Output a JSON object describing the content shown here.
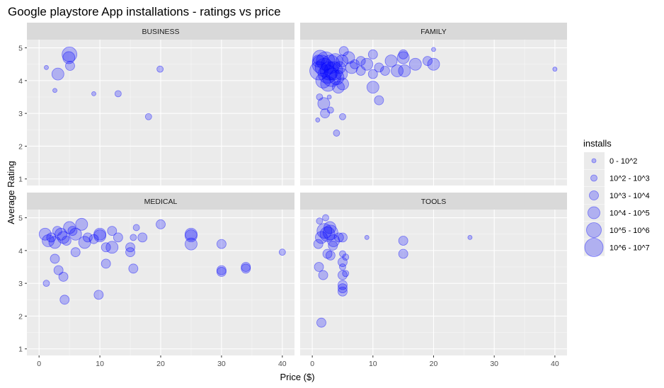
{
  "chart_data": {
    "type": "scatter",
    "title": "Google playstore App installations - ratings vs price",
    "xlabel": "Price ($)",
    "ylabel": "Average Rating",
    "xlim": [
      -2,
      42
    ],
    "ylim": [
      0.8,
      5.25
    ],
    "x_ticks": [
      0,
      10,
      20,
      30,
      40
    ],
    "y_ticks": [
      1,
      2,
      3,
      4,
      5
    ],
    "grid": true,
    "legend": {
      "title": "installs",
      "position": "right",
      "labels": [
        "0 - 10^2",
        "10^2 - 10^3",
        "10^3 - 10^4",
        "10^4 - 10^5",
        "10^5 - 10^6",
        "10^6 - 10^7"
      ]
    },
    "point_color": "#0000ff",
    "panel_bg": "#ebebeb",
    "strip_bg": "#d9d9d9",
    "panels": [
      {
        "name": "BUSINESS",
        "points": [
          [
            1.2,
            4.4,
            1
          ],
          [
            2.6,
            3.7,
            1
          ],
          [
            9,
            3.6,
            1
          ],
          [
            5,
            4.8,
            5
          ],
          [
            4.9,
            4.7,
            4
          ],
          [
            5.1,
            4.45,
            3
          ],
          [
            3.1,
            4.2,
            4
          ],
          [
            13,
            3.6,
            2
          ],
          [
            18,
            2.9,
            2
          ],
          [
            19.9,
            4.35,
            2
          ]
        ]
      },
      {
        "name": "FAMILY",
        "points": [
          [
            1.1,
            4.3,
            6
          ],
          [
            1.5,
            4.5,
            6
          ],
          [
            2,
            4.4,
            6
          ],
          [
            2.5,
            4.2,
            6
          ],
          [
            3,
            4.5,
            6
          ],
          [
            3.5,
            4.3,
            6
          ],
          [
            4,
            4.1,
            5
          ],
          [
            1.3,
            4.7,
            5
          ],
          [
            2.2,
            4.6,
            6
          ],
          [
            2.8,
            4.3,
            6
          ],
          [
            3.2,
            4.1,
            6
          ],
          [
            3.8,
            4.6,
            5
          ],
          [
            1.8,
            4.0,
            5
          ],
          [
            2.6,
            3.9,
            5
          ],
          [
            1.0,
            4.6,
            4
          ],
          [
            4.5,
            4.4,
            4
          ],
          [
            4.9,
            4.6,
            4
          ],
          [
            5.2,
            4.9,
            3
          ],
          [
            4.8,
            4.2,
            4
          ],
          [
            5,
            3.9,
            4
          ],
          [
            4.3,
            3.8,
            4
          ],
          [
            1.2,
            3.5,
            2
          ],
          [
            1.9,
            3.3,
            4
          ],
          [
            2.1,
            3.0,
            3
          ],
          [
            3.0,
            3.1,
            2
          ],
          [
            0.9,
            2.8,
            1
          ],
          [
            2.8,
            3.5,
            1
          ],
          [
            4.0,
            2.4,
            2
          ],
          [
            5,
            2.9,
            2
          ],
          [
            6,
            4.7,
            4
          ],
          [
            6.5,
            4.4,
            4
          ],
          [
            7,
            4.5,
            3
          ],
          [
            8,
            4.3,
            3
          ],
          [
            8,
            4.6,
            3
          ],
          [
            9,
            4.5,
            4
          ],
          [
            10,
            4.8,
            3
          ],
          [
            10,
            4.2,
            3
          ],
          [
            10,
            3.8,
            4
          ],
          [
            11,
            4.4,
            3
          ],
          [
            11,
            3.4,
            3
          ],
          [
            12,
            4.3,
            3
          ],
          [
            13,
            4.6,
            4
          ],
          [
            14,
            4.3,
            4
          ],
          [
            15,
            4.7,
            4
          ],
          [
            15,
            4.8,
            3
          ],
          [
            15.2,
            4.3,
            4
          ],
          [
            17,
            4.5,
            4
          ],
          [
            19,
            4.6,
            3
          ],
          [
            20,
            4.5,
            4
          ],
          [
            20,
            4.95,
            1
          ],
          [
            40,
            4.35,
            1
          ]
        ]
      },
      {
        "name": "MEDICAL",
        "points": [
          [
            1,
            4.5,
            4
          ],
          [
            1.5,
            4.3,
            4
          ],
          [
            2,
            4.4,
            3
          ],
          [
            2.6,
            4.25,
            4
          ],
          [
            3.0,
            4.6,
            3
          ],
          [
            3.6,
            4.5,
            4
          ],
          [
            4,
            4.4,
            4
          ],
          [
            4.5,
            4.3,
            3
          ],
          [
            5,
            4.7,
            4
          ],
          [
            5.5,
            4.6,
            3
          ],
          [
            6,
            4.5,
            4
          ],
          [
            7,
            4.8,
            4
          ],
          [
            7.5,
            4.25,
            4
          ],
          [
            8,
            4.4,
            3
          ],
          [
            9,
            4.35,
            3
          ],
          [
            10,
            4.5,
            4
          ],
          [
            10,
            4.45,
            4
          ],
          [
            11,
            4.1,
            3
          ],
          [
            12,
            4.6,
            3
          ],
          [
            12,
            4.1,
            4
          ],
          [
            13,
            4.4,
            3
          ],
          [
            15,
            4.1,
            3
          ],
          [
            15,
            3.95,
            3
          ],
          [
            15.5,
            4.4,
            2
          ],
          [
            16,
            4.7,
            2
          ],
          [
            17,
            4.4,
            3
          ],
          [
            20,
            4.8,
            3
          ],
          [
            25,
            4.5,
            4
          ],
          [
            25,
            4.45,
            4
          ],
          [
            25,
            4.2,
            4
          ],
          [
            30,
            4.2,
            3
          ],
          [
            30,
            3.4,
            3
          ],
          [
            30,
            3.35,
            3
          ],
          [
            34,
            3.5,
            3
          ],
          [
            34,
            3.45,
            3
          ],
          [
            40,
            3.95,
            2
          ],
          [
            1.2,
            3.0,
            2
          ],
          [
            2.6,
            3.75,
            3
          ],
          [
            3.2,
            3.4,
            3
          ],
          [
            4,
            3.2,
            3
          ],
          [
            4.2,
            2.5,
            3
          ],
          [
            6,
            3.95,
            3
          ],
          [
            9.8,
            2.65,
            3
          ],
          [
            11,
            3.6,
            3
          ],
          [
            15.5,
            3.45,
            3
          ]
        ]
      },
      {
        "name": "TOOLS",
        "points": [
          [
            1.2,
            4.9,
            2
          ],
          [
            1.5,
            4.4,
            4
          ],
          [
            2,
            4.6,
            5
          ],
          [
            2.5,
            4.5,
            5
          ],
          [
            3,
            4.55,
            5
          ],
          [
            3.5,
            4.3,
            4
          ],
          [
            2.2,
            5.0,
            2
          ],
          [
            1.0,
            4.2,
            3
          ],
          [
            2.9,
            4.7,
            4
          ],
          [
            3.4,
            4.15,
            3
          ],
          [
            4.4,
            4.4,
            3
          ],
          [
            5,
            4.4,
            3
          ],
          [
            2.5,
            3.9,
            3
          ],
          [
            3,
            3.85,
            3
          ],
          [
            1.1,
            3.5,
            3
          ],
          [
            1.8,
            3.25,
            3
          ],
          [
            5,
            3.9,
            2
          ],
          [
            5,
            3.65,
            3
          ],
          [
            5.5,
            3.8,
            2
          ],
          [
            5,
            3.5,
            2
          ],
          [
            5.5,
            3.3,
            2
          ],
          [
            5,
            3.25,
            3
          ],
          [
            5,
            2.95,
            3
          ],
          [
            5,
            2.85,
            3
          ],
          [
            5,
            2.75,
            3
          ],
          [
            1.5,
            1.8,
            3
          ],
          [
            9,
            4.4,
            1
          ],
          [
            15,
            4.3,
            3
          ],
          [
            15,
            3.9,
            3
          ],
          [
            26,
            4.4,
            1
          ]
        ]
      }
    ]
  }
}
